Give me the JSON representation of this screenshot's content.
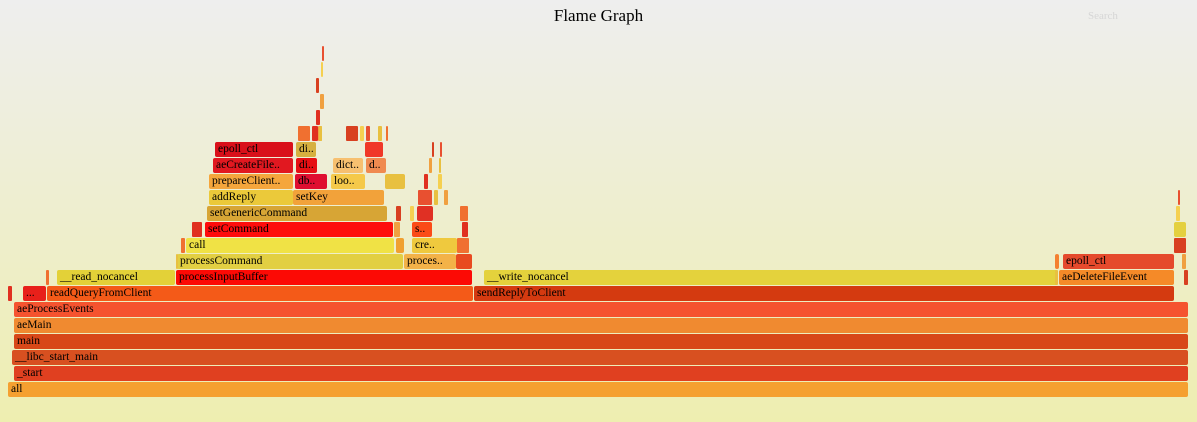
{
  "title": "Flame Graph",
  "search_label": "Search",
  "frames": [
    {
      "label": "all",
      "color": "#f5a030"
    },
    {
      "label": "_start",
      "color": "#e04020"
    },
    {
      "label": "__libc_start_main",
      "color": "#d85020"
    },
    {
      "label": "main",
      "color": "#d84818"
    },
    {
      "label": "aeMain",
      "color": "#f08a30"
    },
    {
      "label": "aeProcessEvents",
      "color": "#f5532f"
    },
    {
      "label": "readQueryFromClient",
      "color": "#f45a18"
    },
    {
      "label": "sendReplyToClient",
      "color": "#d43a10"
    },
    {
      "label": "...",
      "color": "#e8201a"
    },
    {
      "label": "__read_nocancel",
      "color": "#e3d138"
    },
    {
      "label": "processInputBuffer",
      "color": "#fc0a05"
    },
    {
      "label": "__write_nocancel",
      "color": "#e4d23c"
    },
    {
      "label": "aeDeleteFileEvent",
      "color": "#f58a28"
    },
    {
      "label": "processCommand",
      "color": "#e2cf42"
    },
    {
      "label": "proces..",
      "color": "#f3b248"
    },
    {
      "label": "epoll_ctl",
      "color": "#e54a2c"
    },
    {
      "label": "call",
      "color": "#f0e245"
    },
    {
      "label": "cre..",
      "color": "#efc93e"
    },
    {
      "label": "setCommand",
      "color": "#fe0c0c"
    },
    {
      "label": "s..",
      "color": "#fb4b18"
    },
    {
      "label": "setGenericCommand",
      "color": "#d7a535"
    },
    {
      "label": "addReply",
      "color": "#ebc93a"
    },
    {
      "label": "setKey",
      "color": "#f2a23a"
    },
    {
      "label": "prepareClient..",
      "color": "#f5a63c"
    },
    {
      "label": "db..",
      "color": "#df0e30"
    },
    {
      "label": "loo..",
      "color": "#f5c94a"
    },
    {
      "label": "aeCreateFile..",
      "color": "#e11820"
    },
    {
      "label": "di..",
      "color": "#e61014"
    },
    {
      "label": "dict..",
      "color": "#f7c070"
    },
    {
      "label": "d..",
      "color": "#f08a50"
    },
    {
      "label": "epoll_ctl",
      "color": "#d9101a"
    },
    {
      "label": "di..",
      "color": "#d6b040"
    },
    {
      "label": "",
      "color": "#e03024"
    },
    {
      "label": "",
      "color": "#f0a030"
    },
    {
      "label": "",
      "color": "#e84a20"
    },
    {
      "label": "",
      "color": "#e8c040"
    },
    {
      "label": "",
      "color": "#f03828"
    },
    {
      "label": "",
      "color": "#e4d040"
    },
    {
      "label": "",
      "color": "#f48030"
    }
  ]
}
